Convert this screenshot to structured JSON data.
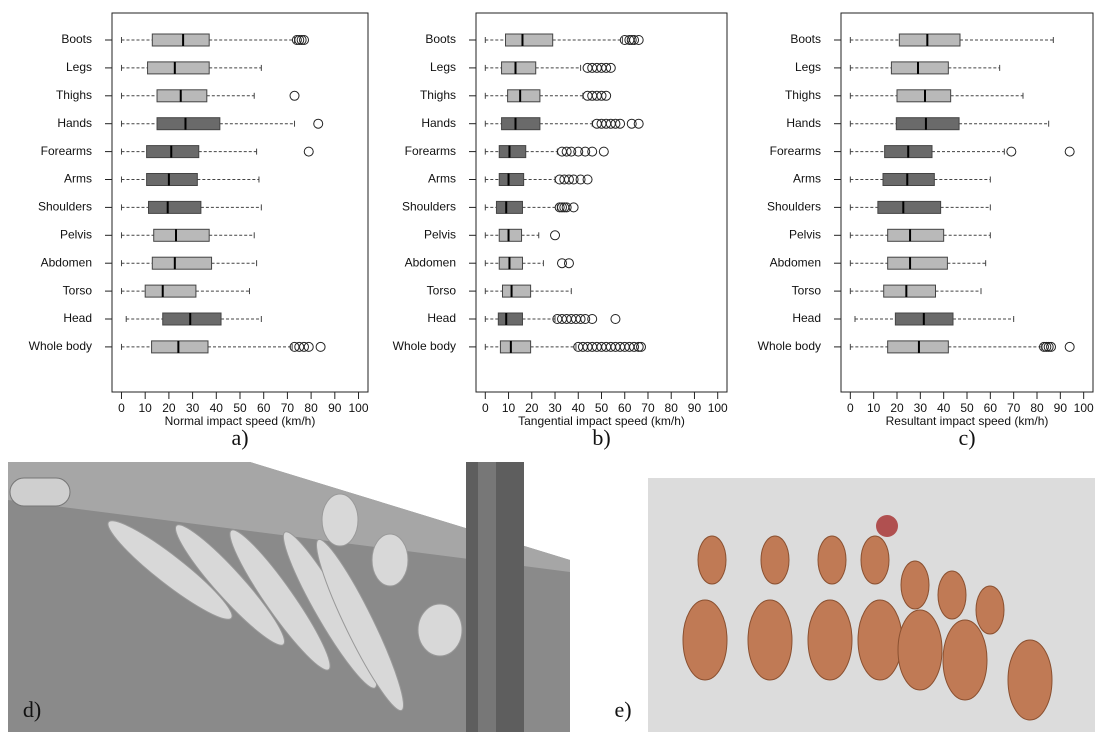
{
  "chart_data": [
    {
      "type": "box",
      "panel_label": "a)",
      "xlabel": "Normal impact speed (km/h)",
      "categories": [
        "Boots",
        "Legs",
        "Thighs",
        "Hands",
        "Forearms",
        "Arms",
        "Shoulders",
        "Pelvis",
        "Abdomen",
        "Torso",
        "Head",
        "Whole body"
      ],
      "min": [
        0,
        0,
        0,
        0,
        0,
        0,
        0,
        0,
        0,
        0,
        2,
        0
      ],
      "q1": [
        13,
        11,
        15,
        15,
        10.6,
        10.6,
        11.4,
        13.6,
        13,
        10,
        17.4,
        12.7
      ],
      "median": [
        26,
        22.5,
        25,
        27,
        21,
        20,
        19.5,
        23,
        22.5,
        17.4,
        29,
        24
      ],
      "q3": [
        37,
        37,
        36,
        41.5,
        32.6,
        32,
        33.5,
        37,
        38,
        31.4,
        42,
        36.5
      ],
      "max": [
        73,
        59,
        56,
        73,
        57,
        58,
        59,
        56,
        57,
        54,
        59,
        72
      ],
      "outliers": [
        [
          74,
          75,
          76,
          77
        ],
        [],
        [
          73
        ],
        [
          83
        ],
        [
          79
        ],
        [],
        [],
        [],
        [],
        [],
        [],
        [
          73,
          75,
          77,
          79,
          84
        ]
      ],
      "box_colors": [
        "#b9b9b9",
        "#b9b9b9",
        "#b9b9b9",
        "#6a6a6a",
        "#6a6a6a",
        "#6a6a6a",
        "#6a6a6a",
        "#b9b9b9",
        "#b9b9b9",
        "#b9b9b9",
        "#6a6a6a",
        "#b9b9b9"
      ],
      "xlim": [
        -4,
        104
      ],
      "xticks": [
        0,
        10,
        20,
        30,
        40,
        50,
        60,
        70,
        80,
        90,
        100
      ]
    },
    {
      "type": "box",
      "panel_label": "b)",
      "xlabel": "Tangential impact speed (km/h)",
      "categories": [
        "Boots",
        "Legs",
        "Thighs",
        "Hands",
        "Forearms",
        "Arms",
        "Shoulders",
        "Pelvis",
        "Abdomen",
        "Torso",
        "Head",
        "Whole body"
      ],
      "min": [
        0,
        0,
        0,
        0,
        0,
        0,
        0,
        0,
        0,
        0,
        0,
        0
      ],
      "q1": [
        8.7,
        7,
        9.6,
        7,
        6,
        6,
        4.8,
        6,
        6,
        7.4,
        5.6,
        6.5
      ],
      "median": [
        16,
        13,
        15,
        13,
        10.4,
        10,
        9,
        10,
        10.4,
        11.3,
        9,
        11
      ],
      "q3": [
        29,
        21.7,
        23.5,
        23.5,
        17.4,
        16.5,
        16,
        15.6,
        16,
        19.5,
        16,
        19.5
      ],
      "max": [
        59,
        41,
        42,
        46,
        31,
        30,
        31,
        23,
        25,
        37,
        30,
        39
      ],
      "outliers": [
        [
          60,
          62,
          63,
          64,
          66
        ],
        [
          44,
          46,
          48,
          50,
          52,
          54
        ],
        [
          44,
          46,
          48,
          50,
          52
        ],
        [
          48,
          50,
          52,
          54,
          56,
          58,
          63,
          66
        ],
        [
          33,
          35,
          37,
          40,
          43,
          46,
          51
        ],
        [
          32,
          34,
          36,
          38,
          41,
          44
        ],
        [
          32,
          33,
          34,
          35,
          38
        ],
        [
          30
        ],
        [
          33,
          36
        ],
        [],
        [
          31,
          33,
          35,
          37,
          39,
          41,
          43,
          46,
          56
        ],
        [
          40,
          42,
          44,
          46,
          48,
          50,
          52,
          54,
          56,
          58,
          60,
          62,
          64,
          66,
          67
        ]
      ],
      "box_colors": [
        "#b9b9b9",
        "#b9b9b9",
        "#b9b9b9",
        "#6a6a6a",
        "#6a6a6a",
        "#6a6a6a",
        "#6a6a6a",
        "#b9b9b9",
        "#b9b9b9",
        "#b9b9b9",
        "#6a6a6a",
        "#b9b9b9"
      ],
      "xlim": [
        -4,
        104
      ],
      "xticks": [
        0,
        10,
        20,
        30,
        40,
        50,
        60,
        70,
        80,
        90,
        100
      ]
    },
    {
      "type": "box",
      "panel_label": "c)",
      "xlabel": "Resultant impact speed (km/h)",
      "categories": [
        "Boots",
        "Legs",
        "Thighs",
        "Hands",
        "Forearms",
        "Arms",
        "Shoulders",
        "Pelvis",
        "Abdomen",
        "Torso",
        "Head",
        "Whole body"
      ],
      "min": [
        0,
        0,
        0,
        0,
        0,
        0,
        0,
        0,
        0,
        0,
        2,
        0
      ],
      "q1": [
        21,
        17.6,
        20,
        19.7,
        14.7,
        14,
        11.8,
        16,
        16,
        14.3,
        19.3,
        16
      ],
      "median": [
        33,
        29,
        32,
        32.4,
        24.8,
        24.4,
        22.7,
        25.6,
        25.6,
        24,
        31.5,
        29.4
      ],
      "q3": [
        47,
        42,
        43,
        46.6,
        35,
        36,
        38.7,
        40,
        41.6,
        36.5,
        44,
        42
      ],
      "max": [
        87,
        64,
        74,
        85,
        66,
        60,
        60,
        60,
        58,
        56,
        70,
        82
      ],
      "outliers": [
        [],
        [],
        [],
        [],
        [
          69,
          94
        ],
        [],
        [],
        [],
        [],
        [],
        [],
        [
          83,
          84,
          85,
          86,
          94
        ]
      ],
      "box_colors": [
        "#b9b9b9",
        "#b9b9b9",
        "#b9b9b9",
        "#6a6a6a",
        "#6a6a6a",
        "#6a6a6a",
        "#6a6a6a",
        "#b9b9b9",
        "#b9b9b9",
        "#b9b9b9",
        "#6a6a6a",
        "#b9b9b9"
      ],
      "xlim": [
        -4,
        104
      ],
      "xticks": [
        0,
        10,
        20,
        30,
        40,
        50,
        60,
        70,
        80,
        90,
        100
      ]
    }
  ],
  "images": [
    {
      "label": "d)"
    },
    {
      "label": "e)"
    }
  ]
}
